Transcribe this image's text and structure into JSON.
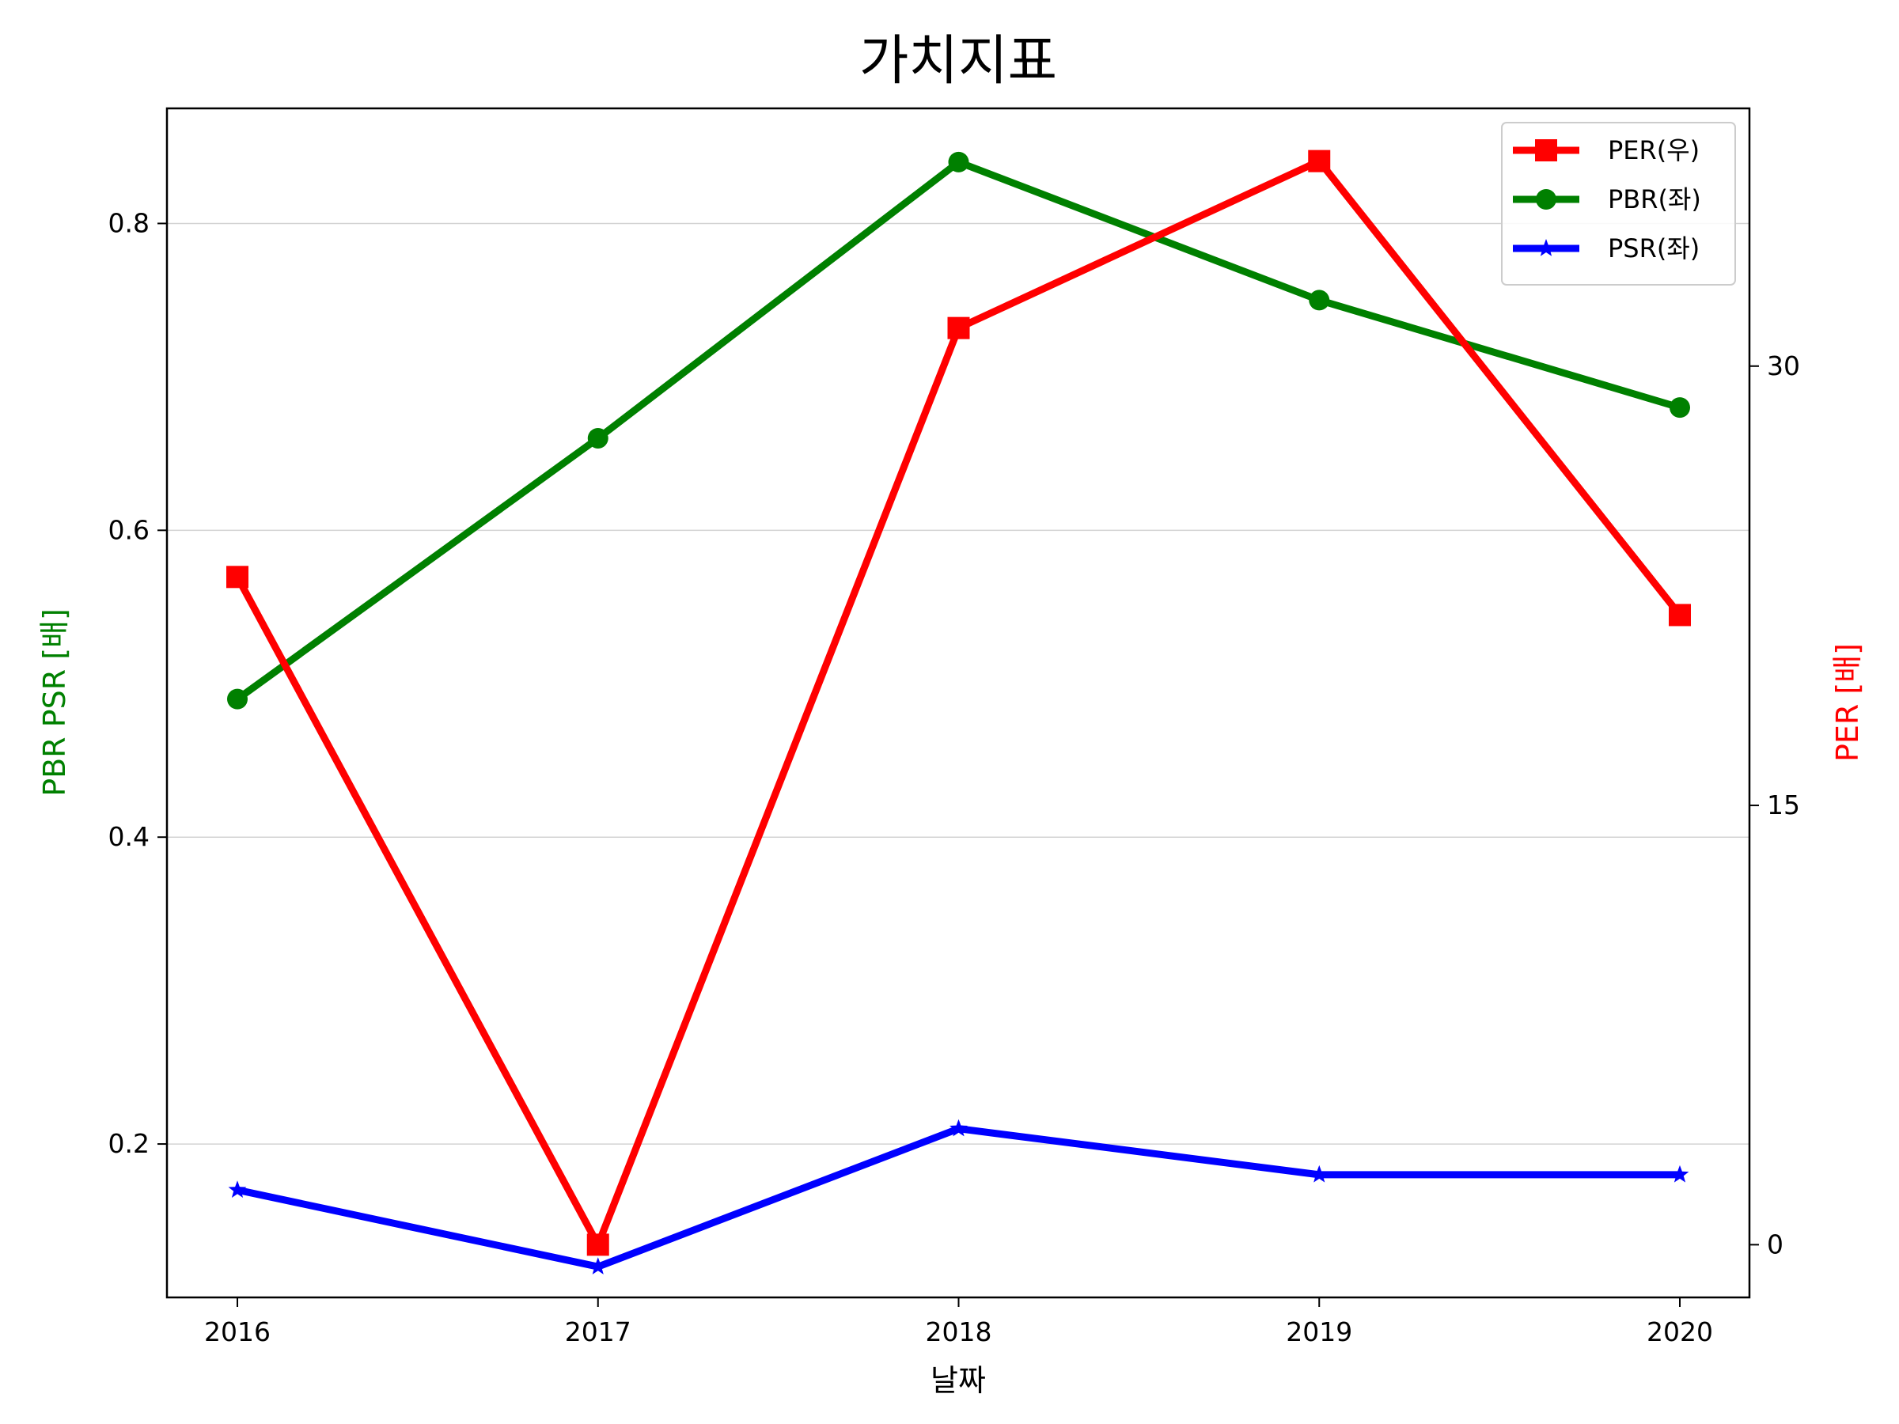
{
  "chart_data": {
    "type": "line",
    "title": "가치지표",
    "xlabel": "날짜",
    "ylabel_left": "PBR PSR [배]",
    "ylabel_right": "PER [배]",
    "categories": [
      "2016",
      "2017",
      "2018",
      "2019",
      "2020"
    ],
    "left_axis": {
      "range": [
        0.1,
        0.875
      ],
      "ticks": [
        0.2,
        0.4,
        0.6,
        0.8
      ],
      "tick_labels": [
        "0.2",
        "0.4",
        "0.6",
        "0.8"
      ],
      "color": "#008000"
    },
    "right_axis": {
      "range": [
        -1.8,
        38.8
      ],
      "ticks": [
        0,
        15,
        30
      ],
      "tick_labels": [
        "0",
        "15",
        "30"
      ],
      "color": "#ff0000"
    },
    "grid": "horizontal",
    "legend_position": "top-right",
    "series": [
      {
        "name": "PER(우)",
        "axis": "right",
        "color": "#ff0000",
        "marker": "square",
        "values": [
          22.8,
          0.0,
          31.3,
          37.0,
          21.5
        ]
      },
      {
        "name": "PBR(좌)",
        "axis": "left",
        "color": "#008000",
        "marker": "circle",
        "values": [
          0.49,
          0.66,
          0.84,
          0.75,
          0.68
        ]
      },
      {
        "name": "PSR(좌)",
        "axis": "left",
        "color": "#0000ff",
        "marker": "star",
        "values": [
          0.17,
          0.12,
          0.21,
          0.18,
          0.18
        ]
      }
    ]
  }
}
